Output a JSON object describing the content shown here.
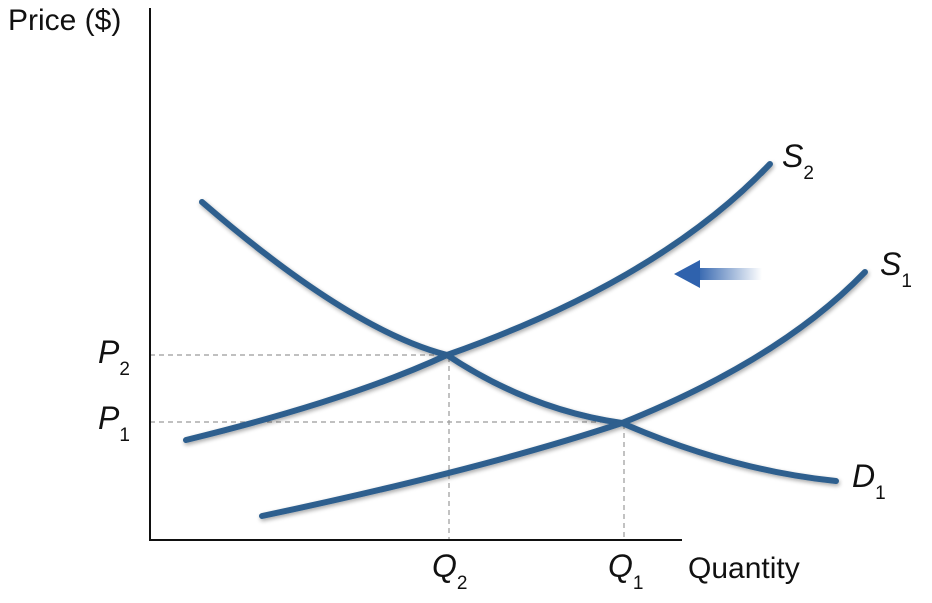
{
  "axes": {
    "y_label": "Price ($)",
    "x_label": "Quantity"
  },
  "curves": {
    "s2": {
      "letter": "S",
      "sub": "2"
    },
    "s1": {
      "letter": "S",
      "sub": "1"
    },
    "d1": {
      "letter": "D",
      "sub": "1"
    }
  },
  "levels": {
    "p2": {
      "letter": "P",
      "sub": "2"
    },
    "p1": {
      "letter": "P",
      "sub": "1"
    },
    "q2": {
      "letter": "Q",
      "sub": "2"
    },
    "q1": {
      "letter": "Q",
      "sub": "1"
    }
  },
  "colors": {
    "curve": "#2d5f8e",
    "arrow": "#3f6fb3",
    "guide": "#9a9a9a",
    "axis": "#111111"
  },
  "icons": {
    "shift_arrow": "left-arrow-icon"
  }
}
